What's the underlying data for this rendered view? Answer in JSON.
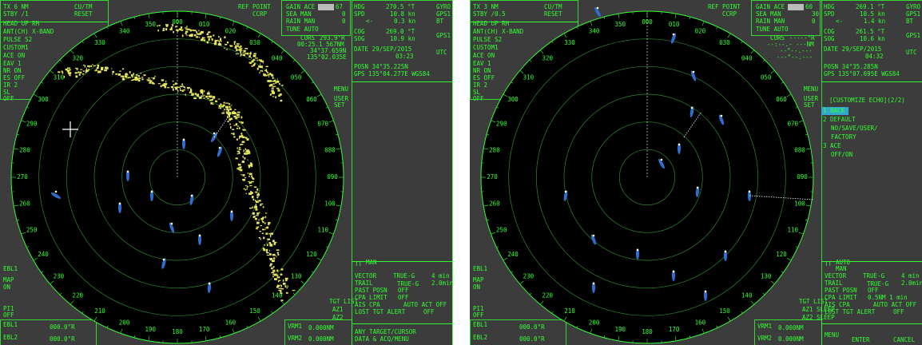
{
  "bearing_labels": [
    "000",
    "010",
    "020",
    "030",
    "040",
    "050",
    "060",
    "070",
    "080",
    "090",
    "100",
    "110",
    "120",
    "130",
    "140",
    "150",
    "160",
    "170",
    "180",
    "190",
    "200",
    "210",
    "220",
    "230",
    "240",
    "250",
    "260",
    "270",
    "280",
    "290",
    "300",
    "310",
    "320",
    "330",
    "340",
    "350"
  ],
  "panels": [
    {
      "labels": {
        "tx": "TX  6   NM",
        "stby": "STBY  /1",
        "cutm": "CU/TM",
        "reset": "RESET",
        "mode": "HEAD UP RM",
        "ant": "ANT(CH) X-BAND",
        "pulse": "PULSE S2",
        "custom": "CUSTOM1",
        "ace": "ACE ON",
        "eav": "EAV 1",
        "nr": "NR  ON",
        "es": "ES  OFF",
        "ir": "IR  2",
        "sl": "SL",
        "sl_val": "OFF",
        "ref": "REF POINT",
        "ccrp": "CCRP",
        "gain": "GAIN ACE",
        "gain_val": "67",
        "sea": "SEA  MAN",
        "sea_val": "0",
        "rain": "RAIN MAN",
        "rain_val": "0",
        "tune": "TUNE AUTO",
        "hdg": "HDG",
        "hdg_val": "270.5 °T",
        "hdg_src": "GYRO",
        "spd": "SPD",
        "spd_val": "10.8 kn",
        "spd_src": "GPS1",
        "drift": "<-",
        "drift_val": "0.3 kn",
        "drift_src": "BT",
        "cog": "COG",
        "cog_val": "269.0 °T",
        "sog": "SOG",
        "sog_val": "10.9 kn",
        "sog_src": "GPS1",
        "curs": "CURS",
        "curs_brg": "293.9°R",
        "curs_rng": "00:25.1 567NM",
        "curs_lat": "34°37.659N",
        "curs_lon": "135°02.035E",
        "date": "DATE 29/SEP/2015",
        "time": "03:23",
        "utc": "UTC",
        "posn": "POSN 34°35.225N",
        "gps": "GPS   135°04.277E WGS84",
        "menu": "MENU",
        "user": "USER",
        "set": "SET",
        "tt": "TT",
        "tt_mode": "MAN",
        "vector": "VECTOR",
        "vector_mode": "TRUE-G",
        "vector_time": "4 min",
        "trail": "TRAIL",
        "trail_mode": "TRUE-G",
        "trail_time": "2.0min",
        "past": "PAST POSN",
        "past_val": "OFF",
        "cpa": "CPA LIMIT",
        "cpa_val": "OFF",
        "ais": "AIS CPA",
        "ais_val": "AUTO ACT OFF",
        "lost": "LOST TGT ALERT",
        "lost_val": "OFF",
        "tgt_list": "TGT LIST",
        "az1": "AZ1",
        "az2": "AZ2",
        "vrm1": "VRM1",
        "vrm1_val": "0.000NM",
        "vrm2": "VRM2",
        "vrm2_val": "0.000NM",
        "ebl": "EBL1",
        "map": "MAP",
        "map_on": "ON",
        "pi1": "PI1",
        "pi1_val": "OFF",
        "ebl1": "EBL1",
        "ebl1_val": "000.0°R",
        "ebl2": "EBL2",
        "ebl2_val": "000.0°R",
        "info1": "ANY TARGET/CURSOR",
        "info2": "DATA & ACQ/MENU"
      }
    },
    {
      "labels": {
        "tx": "TX  3   NM",
        "stby": "STBY  /0.5",
        "cutm": "CU/TM",
        "reset": "RESET",
        "mode": "HEAD UP RM",
        "ant": "ANT(CH) X-BAND",
        "pulse": "PULSE S2",
        "custom": "CUSTOM1",
        "ace": "ACE ON",
        "eav": "EAV 1",
        "nr": "NR  ON",
        "es": "ES  OFF",
        "ir": "IR  2",
        "sl": "SL",
        "sl_val": "OFF",
        "ref": "REF POINT",
        "ccrp": "CCRP",
        "gain": "GAIN ACE",
        "gain_val": "60",
        "sea": "SEA  MAN",
        "sea_val": "30",
        "rain": "RAIN MAN",
        "rain_val": "0",
        "tune": "TUNE AUTO",
        "hdg": "HDG",
        "hdg_val": "269.1 °T",
        "hdg_src": "GYRO",
        "spd": "SPD",
        "spd_val": "10.5 kn",
        "spd_src": "GPS1",
        "drift": "<-",
        "drift_val": "1.4 kn",
        "drift_src": "BT",
        "cog": "COG",
        "cog_val": "261.5 °T",
        "sog": "SOG",
        "sog_val": "10.6 kn",
        "sog_src": "GPS1",
        "curs": "CURS",
        "curs_brg": "-----°R",
        "curs_rng": "--:--.- ---NM",
        "curs_lat": "--°--.---",
        "curs_lon": "---°--.---",
        "date": "DATE 29/SEP/2015",
        "time": "04:32",
        "utc": "UTC",
        "posn": "POSN 34°35.285N",
        "gps": "GPS   135°07.695E WGS84",
        "menu": "MENU",
        "user": "USER",
        "set": "SET",
        "menu_title": "[CUSTOMIZE ECHO](2/2)",
        "item1": "1 BACK",
        "item2": "2 DEFAULT",
        "item2b": "NO/SAVE/USER/",
        "item2c": "FACTORY",
        "item3": "3 ACE",
        "item3b": "OFF/ON",
        "tt": "TT",
        "tt_mode": "AUTO",
        "tt_mode2": "MAN",
        "vector": "VECTOR",
        "vector_mode": "TRUE-G",
        "vector_time": "4 min",
        "trail": "TRAIL",
        "trail_mode": "TRUE-G",
        "trail_time": "2.0min",
        "past": "PAST POSN",
        "past_val": "OFF",
        "cpa": "CPA LIMIT",
        "cpa_val": "0.5NM  1 min",
        "ais": "AIS CPA",
        "ais_val": "AUTO ACT OFF",
        "lost": "LOST TGT ALERT",
        "lost_val": "OFF",
        "tgt_list": "TGT LIST",
        "az1": "AZ1 SLEEP",
        "az2": "AZ2 SLEEP",
        "vrm1": "VRM1",
        "vrm1_val": "0.000NM",
        "vrm2": "VRM2",
        "vrm2_val": "0.000NM",
        "ebl": "EBL1",
        "map": "MAP",
        "map_on": "ON",
        "pi1": "PI1",
        "pi1_val": "OFF",
        "ebl1": "EBL1",
        "ebl1_val": "000.0°R",
        "ebl2": "EBL2",
        "ebl2_val": "000.0°R",
        "menu_b": "MENU",
        "enter": "ENTER",
        "cancel": "CANCEL"
      }
    }
  ]
}
